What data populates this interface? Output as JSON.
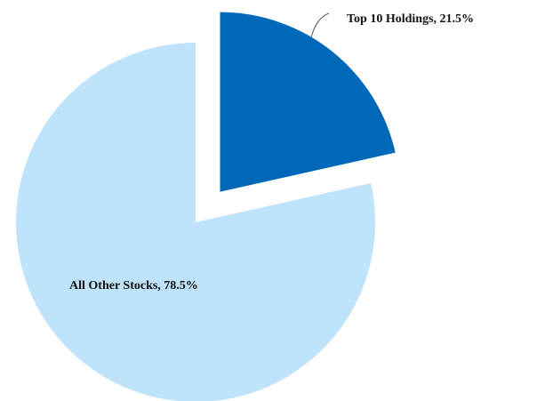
{
  "chart_data": {
    "type": "pie",
    "values": [
      21.5,
      78.5
    ],
    "value_labels": [
      "Top 10 Holdings, 21.5%",
      "All Other Stocks, 78.5%"
    ],
    "colors": [
      "#0068b8",
      "#bfe3fb"
    ],
    "exploded": [
      true,
      false
    ]
  }
}
